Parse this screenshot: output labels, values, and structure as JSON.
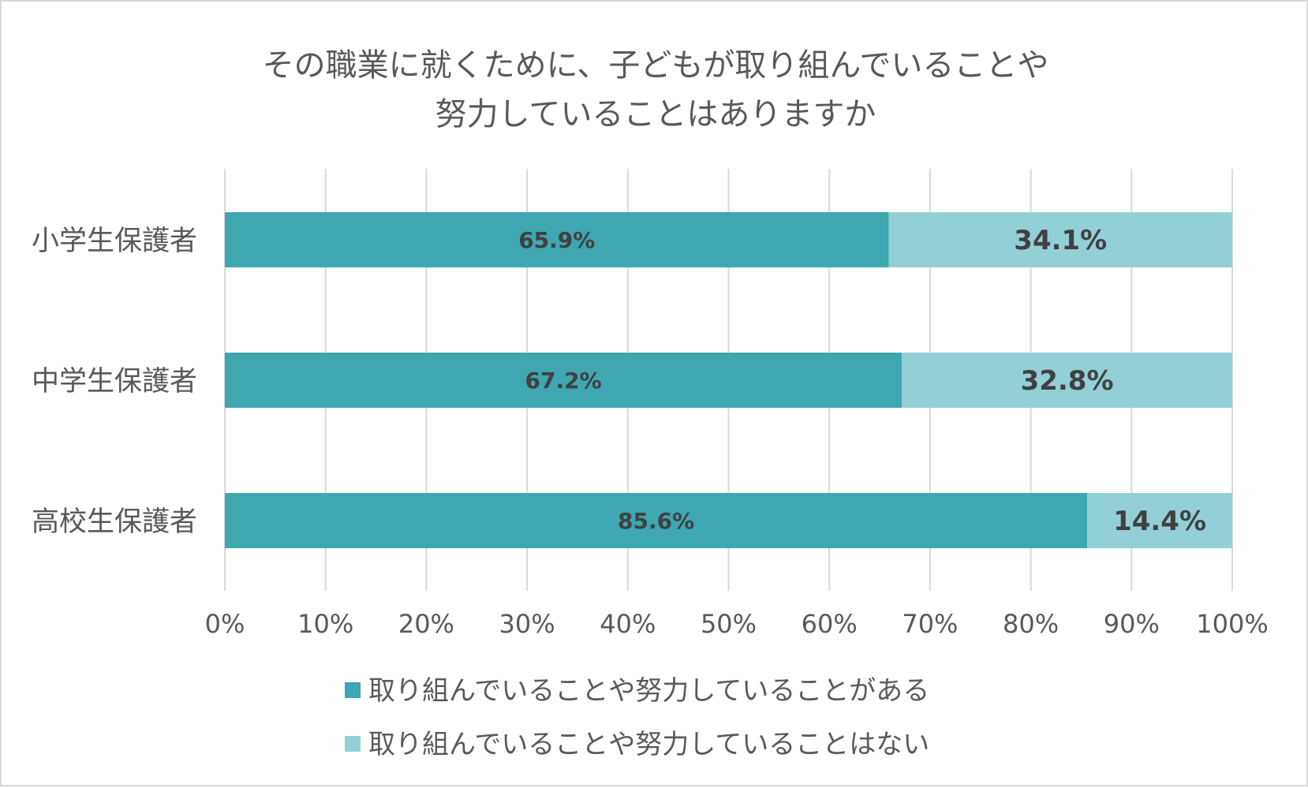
{
  "chart_data": {
    "type": "bar",
    "orientation": "horizontal",
    "stacked": true,
    "title_lines": [
      "その職業に就くために、子どもが取り組んでいることや",
      "努力していることはありますか"
    ],
    "categories": [
      "小学生保護者",
      "中学生保護者",
      "高校生保護者"
    ],
    "series": [
      {
        "name": "取り組んでいることや努力していることがある",
        "values": [
          65.9,
          67.2,
          85.6
        ],
        "labels": [
          "65.9%",
          "67.2%",
          "85.6%"
        ],
        "color": "#3ea7b1"
      },
      {
        "name": "取り組んでいることや努力していることはない",
        "values": [
          34.1,
          32.8,
          14.4
        ],
        "labels": [
          "34.1%",
          "32.8%",
          "14.4%"
        ],
        "color": "#92d0d6"
      }
    ],
    "xlim": [
      0,
      100
    ],
    "xticks": [
      "0%",
      "10%",
      "20%",
      "30%",
      "40%",
      "50%",
      "60%",
      "70%",
      "80%",
      "90%",
      "100%"
    ],
    "grid": true,
    "legend_position": "bottom",
    "colors": {
      "grid": "#d9d9d9",
      "text": "#595959",
      "label_text": "#404040"
    }
  }
}
